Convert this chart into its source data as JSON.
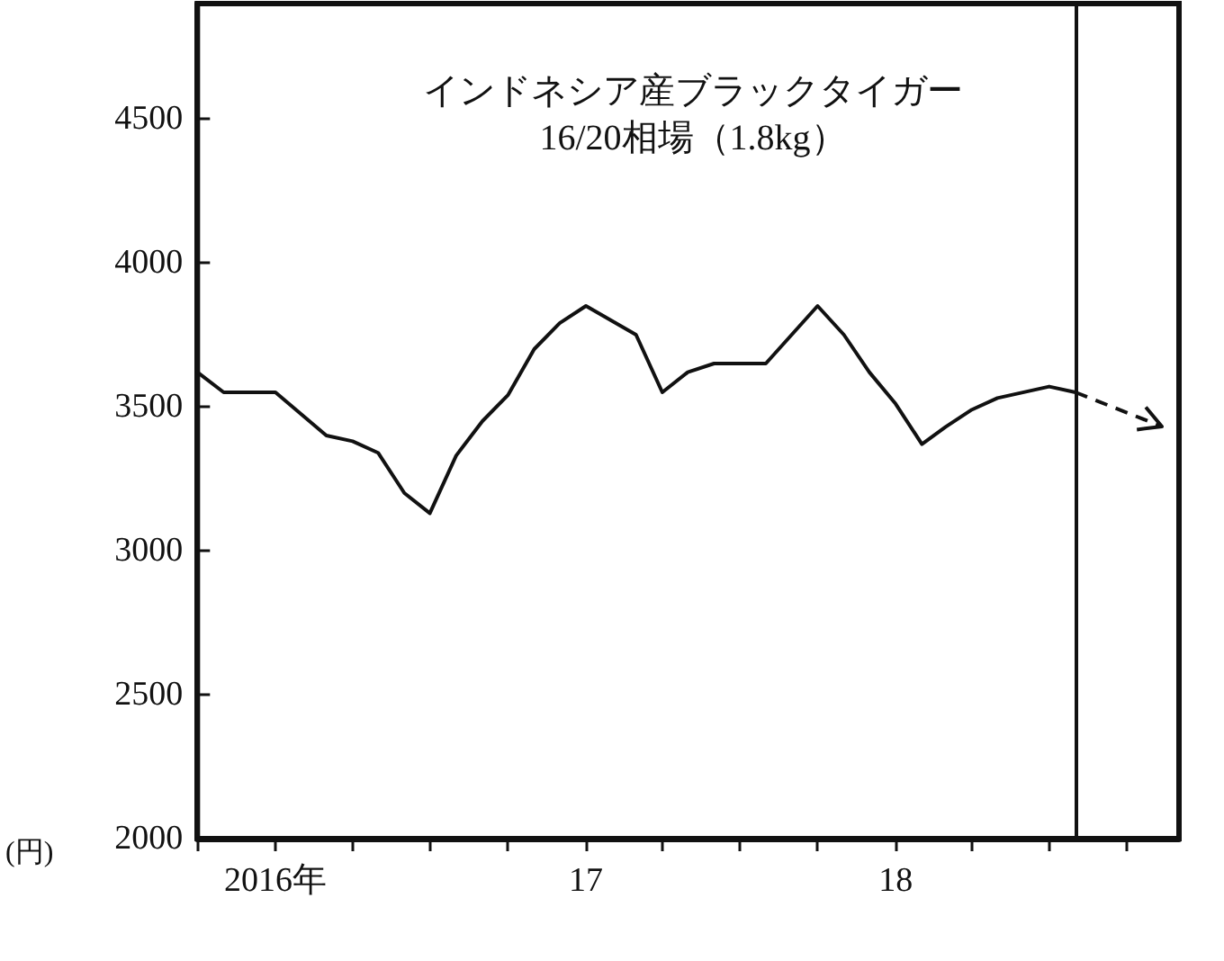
{
  "chart_data": {
    "type": "line",
    "title": "インドネシア産ブラックタイガー",
    "subtitle": "16/20相場（1.8kg）",
    "ylabel": "(円)",
    "series": [
      {
        "color": "#111111",
        "line_style": "solid",
        "x": [
          "2015-10",
          "2015-11",
          "2016-01",
          "2016-03",
          "2016-04",
          "2016-05",
          "2016-06",
          "2016-07",
          "2016-08",
          "2016-09",
          "2016-10",
          "2016-11",
          "2016-12",
          "2017-01",
          "2017-03",
          "2017-04",
          "2017-05",
          "2017-06",
          "2017-08",
          "2017-10",
          "2017-11",
          "2017-12",
          "2018-01",
          "2018-02",
          "2018-03",
          "2018-04",
          "2018-05",
          "2018-07",
          "2018-08"
        ],
        "values": [
          3620,
          3550,
          3550,
          3400,
          3380,
          3340,
          3200,
          3130,
          3330,
          3450,
          3540,
          3700,
          3790,
          3850,
          3750,
          3550,
          3620,
          3650,
          3650,
          3850,
          3750,
          3620,
          3510,
          3370,
          3430,
          3490,
          3530,
          3570,
          3550
        ]
      }
    ],
    "marker": "none",
    "grid": false,
    "xlim": [
      "2015-10",
      "2018-12"
    ],
    "xticks": [
      {
        "value": "2015-10",
        "label": null
      },
      {
        "value": "2016-01",
        "label": "2016年"
      },
      {
        "value": "2016-04",
        "label": null
      },
      {
        "value": "2016-07",
        "label": null
      },
      {
        "value": "2016-10",
        "label": null
      },
      {
        "value": "2017-01",
        "label": "17"
      },
      {
        "value": "2017-04",
        "label": null
      },
      {
        "value": "2017-07",
        "label": null
      },
      {
        "value": "2017-10",
        "label": null
      },
      {
        "value": "2018-01",
        "label": "18"
      },
      {
        "value": "2018-04",
        "label": null
      },
      {
        "value": "2018-07",
        "label": null
      },
      {
        "value": "2018-10",
        "label": null
      }
    ],
    "ylim": [
      2000,
      4900
    ],
    "yticks": [
      2000,
      2500,
      3000,
      3500,
      4000,
      4500
    ],
    "ref_lines": [
      {
        "axis": "x",
        "value": "2018-08",
        "color": "#111111"
      }
    ]
  }
}
